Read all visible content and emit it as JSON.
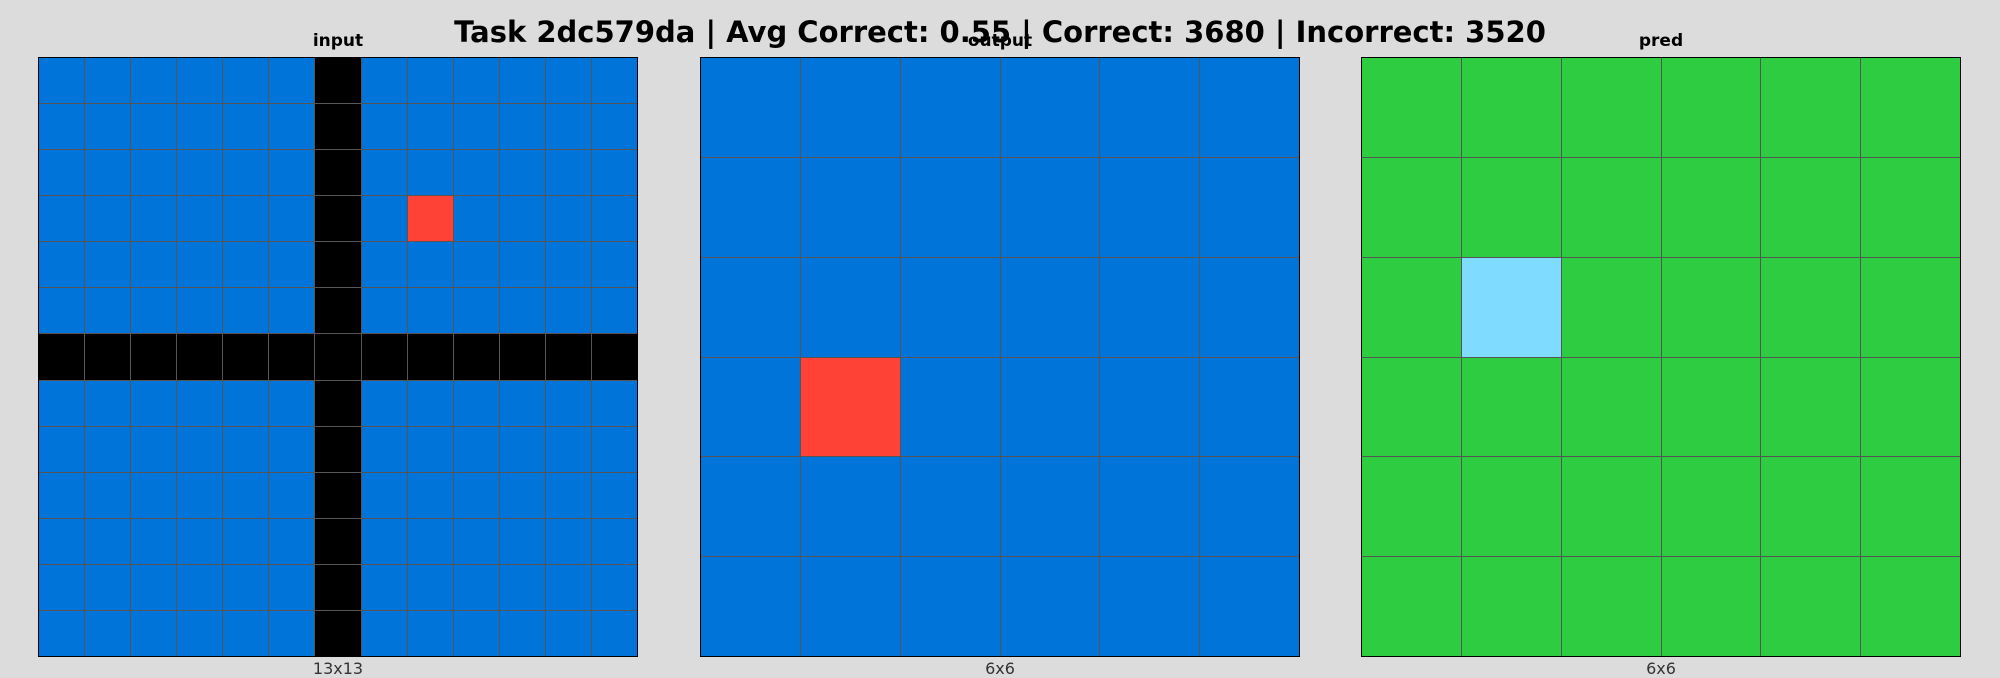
{
  "title": "Task 2dc579da | Avg Correct: 0.55 | Correct: 3680 | Incorrect: 3520",
  "colors": {
    "0": "#000000",
    "1": "#0074d9",
    "2": "#ff4136",
    "3": "#2ecc40",
    "8": "#7fdbff",
    "grid_line": "#555555",
    "background": "#dcdcdc"
  },
  "panels": [
    {
      "title": "input",
      "caption": "13x13",
      "grid": [
        [
          1,
          1,
          1,
          1,
          1,
          1,
          0,
          1,
          1,
          1,
          1,
          1,
          1
        ],
        [
          1,
          1,
          1,
          1,
          1,
          1,
          0,
          1,
          1,
          1,
          1,
          1,
          1
        ],
        [
          1,
          1,
          1,
          1,
          1,
          1,
          0,
          1,
          1,
          1,
          1,
          1,
          1
        ],
        [
          1,
          1,
          1,
          1,
          1,
          1,
          0,
          1,
          2,
          1,
          1,
          1,
          1
        ],
        [
          1,
          1,
          1,
          1,
          1,
          1,
          0,
          1,
          1,
          1,
          1,
          1,
          1
        ],
        [
          1,
          1,
          1,
          1,
          1,
          1,
          0,
          1,
          1,
          1,
          1,
          1,
          1
        ],
        [
          0,
          0,
          0,
          0,
          0,
          0,
          0,
          0,
          0,
          0,
          0,
          0,
          0
        ],
        [
          1,
          1,
          1,
          1,
          1,
          1,
          0,
          1,
          1,
          1,
          1,
          1,
          1
        ],
        [
          1,
          1,
          1,
          1,
          1,
          1,
          0,
          1,
          1,
          1,
          1,
          1,
          1
        ],
        [
          1,
          1,
          1,
          1,
          1,
          1,
          0,
          1,
          1,
          1,
          1,
          1,
          1
        ],
        [
          1,
          1,
          1,
          1,
          1,
          1,
          0,
          1,
          1,
          1,
          1,
          1,
          1
        ],
        [
          1,
          1,
          1,
          1,
          1,
          1,
          0,
          1,
          1,
          1,
          1,
          1,
          1
        ],
        [
          1,
          1,
          1,
          1,
          1,
          1,
          0,
          1,
          1,
          1,
          1,
          1,
          1
        ]
      ]
    },
    {
      "title": "output",
      "caption": "6x6",
      "grid": [
        [
          1,
          1,
          1,
          1,
          1,
          1
        ],
        [
          1,
          1,
          1,
          1,
          1,
          1
        ],
        [
          1,
          1,
          1,
          1,
          1,
          1
        ],
        [
          1,
          2,
          1,
          1,
          1,
          1
        ],
        [
          1,
          1,
          1,
          1,
          1,
          1
        ],
        [
          1,
          1,
          1,
          1,
          1,
          1
        ]
      ]
    },
    {
      "title": "pred",
      "caption": "6x6",
      "grid": [
        [
          3,
          3,
          3,
          3,
          3,
          3
        ],
        [
          3,
          3,
          3,
          3,
          3,
          3
        ],
        [
          3,
          8,
          3,
          3,
          3,
          3
        ],
        [
          3,
          3,
          3,
          3,
          3,
          3
        ],
        [
          3,
          3,
          3,
          3,
          3,
          3
        ],
        [
          3,
          3,
          3,
          3,
          3,
          3
        ]
      ]
    }
  ]
}
